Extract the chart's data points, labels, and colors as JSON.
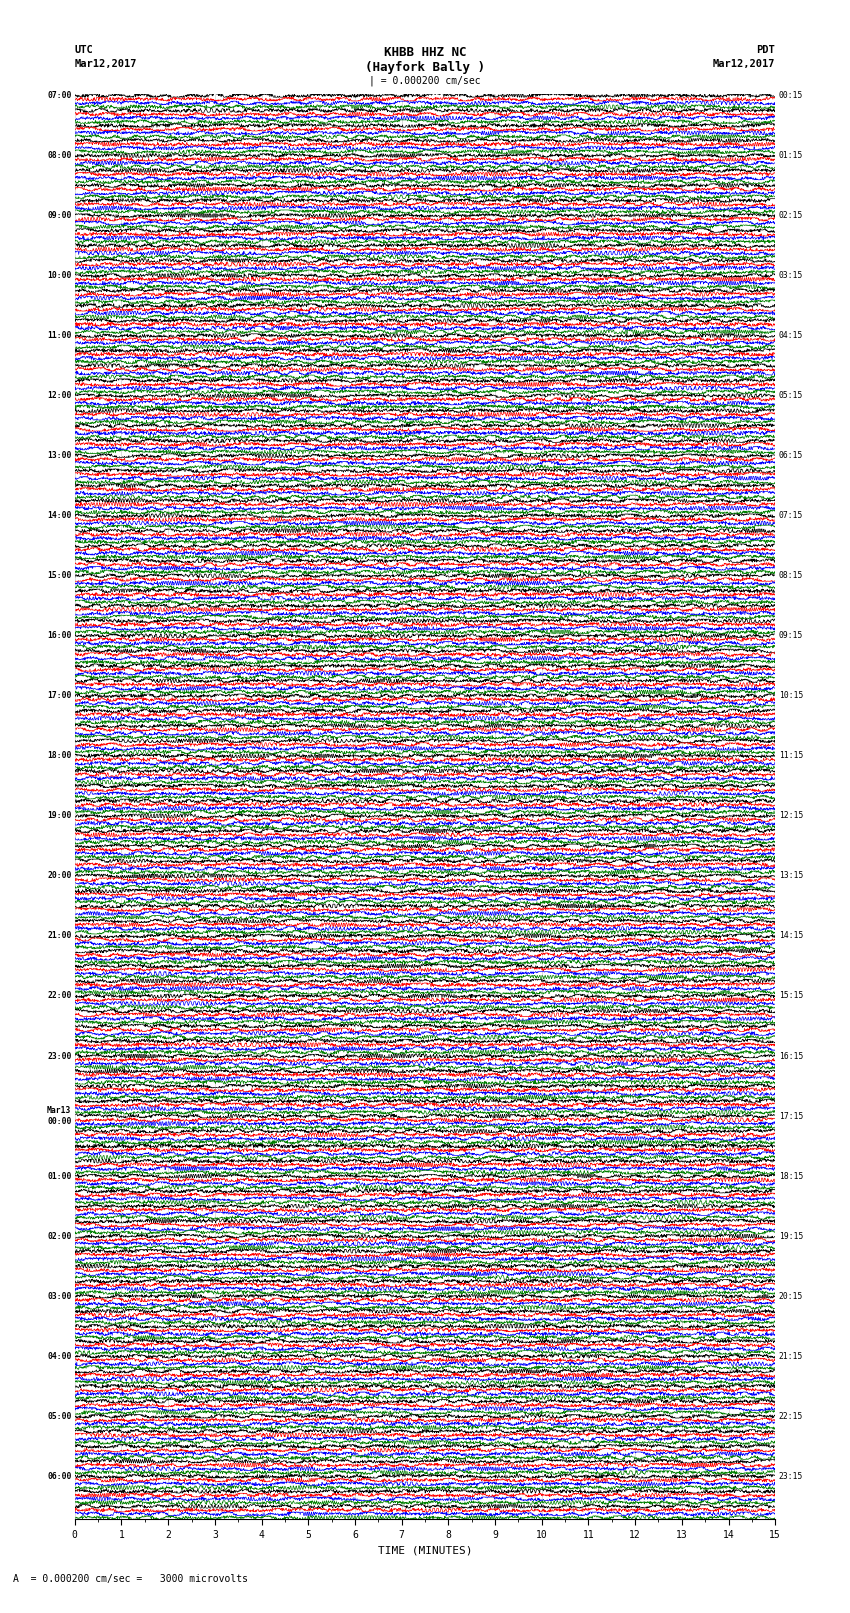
{
  "title_line1": "KHBB HHZ NC",
  "title_line2": "(Hayfork Bally )",
  "scale_text": "| = 0.000200 cm/sec",
  "bottom_label": "A  = 0.000200 cm/sec =   3000 microvolts",
  "utc_label_line1": "UTC",
  "utc_label_line2": "Mar12,2017",
  "pdt_label_line1": "PDT",
  "pdt_label_line2": "Mar12,2017",
  "xlabel": "TIME (MINUTES)",
  "xticks": [
    0,
    1,
    2,
    3,
    4,
    5,
    6,
    7,
    8,
    9,
    10,
    11,
    12,
    13,
    14,
    15
  ],
  "left_times": [
    "07:00",
    "",
    "",
    "",
    "08:00",
    "",
    "",
    "",
    "09:00",
    "",
    "",
    "",
    "10:00",
    "",
    "",
    "",
    "11:00",
    "",
    "",
    "",
    "12:00",
    "",
    "",
    "",
    "13:00",
    "",
    "",
    "",
    "14:00",
    "",
    "",
    "",
    "15:00",
    "",
    "",
    "",
    "16:00",
    "",
    "",
    "",
    "17:00",
    "",
    "",
    "",
    "18:00",
    "",
    "",
    "",
    "19:00",
    "",
    "",
    "",
    "20:00",
    "",
    "",
    "",
    "21:00",
    "",
    "",
    "",
    "22:00",
    "",
    "",
    "",
    "23:00",
    "",
    "",
    "",
    "Mar13\n00:00",
    "",
    "",
    "",
    "01:00",
    "",
    "",
    "",
    "02:00",
    "",
    "",
    "",
    "03:00",
    "",
    "",
    "",
    "04:00",
    "",
    "",
    "",
    "05:00",
    "",
    "",
    "",
    "06:00",
    "",
    ""
  ],
  "right_times": [
    "00:15",
    "",
    "",
    "",
    "01:15",
    "",
    "",
    "",
    "02:15",
    "",
    "",
    "",
    "03:15",
    "",
    "",
    "",
    "04:15",
    "",
    "",
    "",
    "05:15",
    "",
    "",
    "",
    "06:15",
    "",
    "",
    "",
    "07:15",
    "",
    "",
    "",
    "08:15",
    "",
    "",
    "",
    "09:15",
    "",
    "",
    "",
    "10:15",
    "",
    "",
    "",
    "11:15",
    "",
    "",
    "",
    "12:15",
    "",
    "",
    "",
    "13:15",
    "",
    "",
    "",
    "14:15",
    "",
    "",
    "",
    "15:15",
    "",
    "",
    "",
    "16:15",
    "",
    "",
    "",
    "17:15",
    "",
    "",
    "",
    "18:15",
    "",
    "",
    "",
    "19:15",
    "",
    "",
    "",
    "20:15",
    "",
    "",
    "",
    "21:15",
    "",
    "",
    "",
    "22:15",
    "",
    "",
    "",
    "23:15",
    "",
    ""
  ],
  "trace_colors": [
    "black",
    "red",
    "blue",
    "green"
  ],
  "num_rows": 95,
  "traces_per_row": 4,
  "fig_width": 8.5,
  "fig_height": 16.13,
  "bg_color": "white",
  "trace_linewidth": 0.5,
  "grid_color": "#aaaaaa",
  "grid_linewidth": 0.4
}
